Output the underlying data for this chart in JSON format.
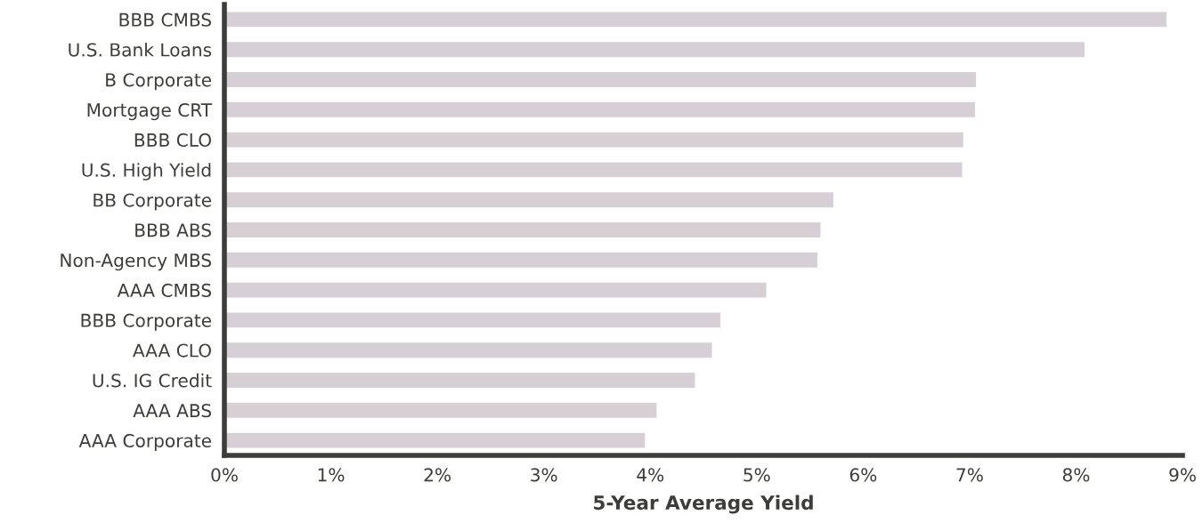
{
  "chart_data": {
    "type": "bar",
    "orientation": "horizontal",
    "xlabel": "5-Year Average Yield",
    "categories": [
      "BBB CMBS",
      "U.S. Bank Loans",
      "B Corporate",
      "Mortgage CRT",
      "BBB CLO",
      "U.S. High Yield",
      "BB Corporate",
      "BBB ABS",
      "Non-Agency MBS",
      "AAA CMBS",
      "BBB Corporate",
      "AAA CLO",
      "U.S. IG Credit",
      "AAA ABS",
      "AAA Corporate"
    ],
    "values": [
      8.85,
      8.08,
      7.06,
      7.05,
      6.94,
      6.93,
      5.72,
      5.6,
      5.57,
      5.09,
      4.66,
      4.58,
      4.42,
      4.06,
      3.95
    ],
    "color": "#d6cfd6",
    "xlim": [
      0,
      9
    ],
    "xticks": [
      {
        "value": 0,
        "label": "0%"
      },
      {
        "value": 1,
        "label": "1%"
      },
      {
        "value": 2,
        "label": "2%"
      },
      {
        "value": 3,
        "label": "3%"
      },
      {
        "value": 4,
        "label": "4%"
      },
      {
        "value": 5,
        "label": "5%"
      },
      {
        "value": 6,
        "label": "6%"
      },
      {
        "value": 7,
        "label": "7%"
      },
      {
        "value": 8,
        "label": "8%"
      },
      {
        "value": 9,
        "label": "9%"
      }
    ],
    "grid": false,
    "legend": false
  }
}
